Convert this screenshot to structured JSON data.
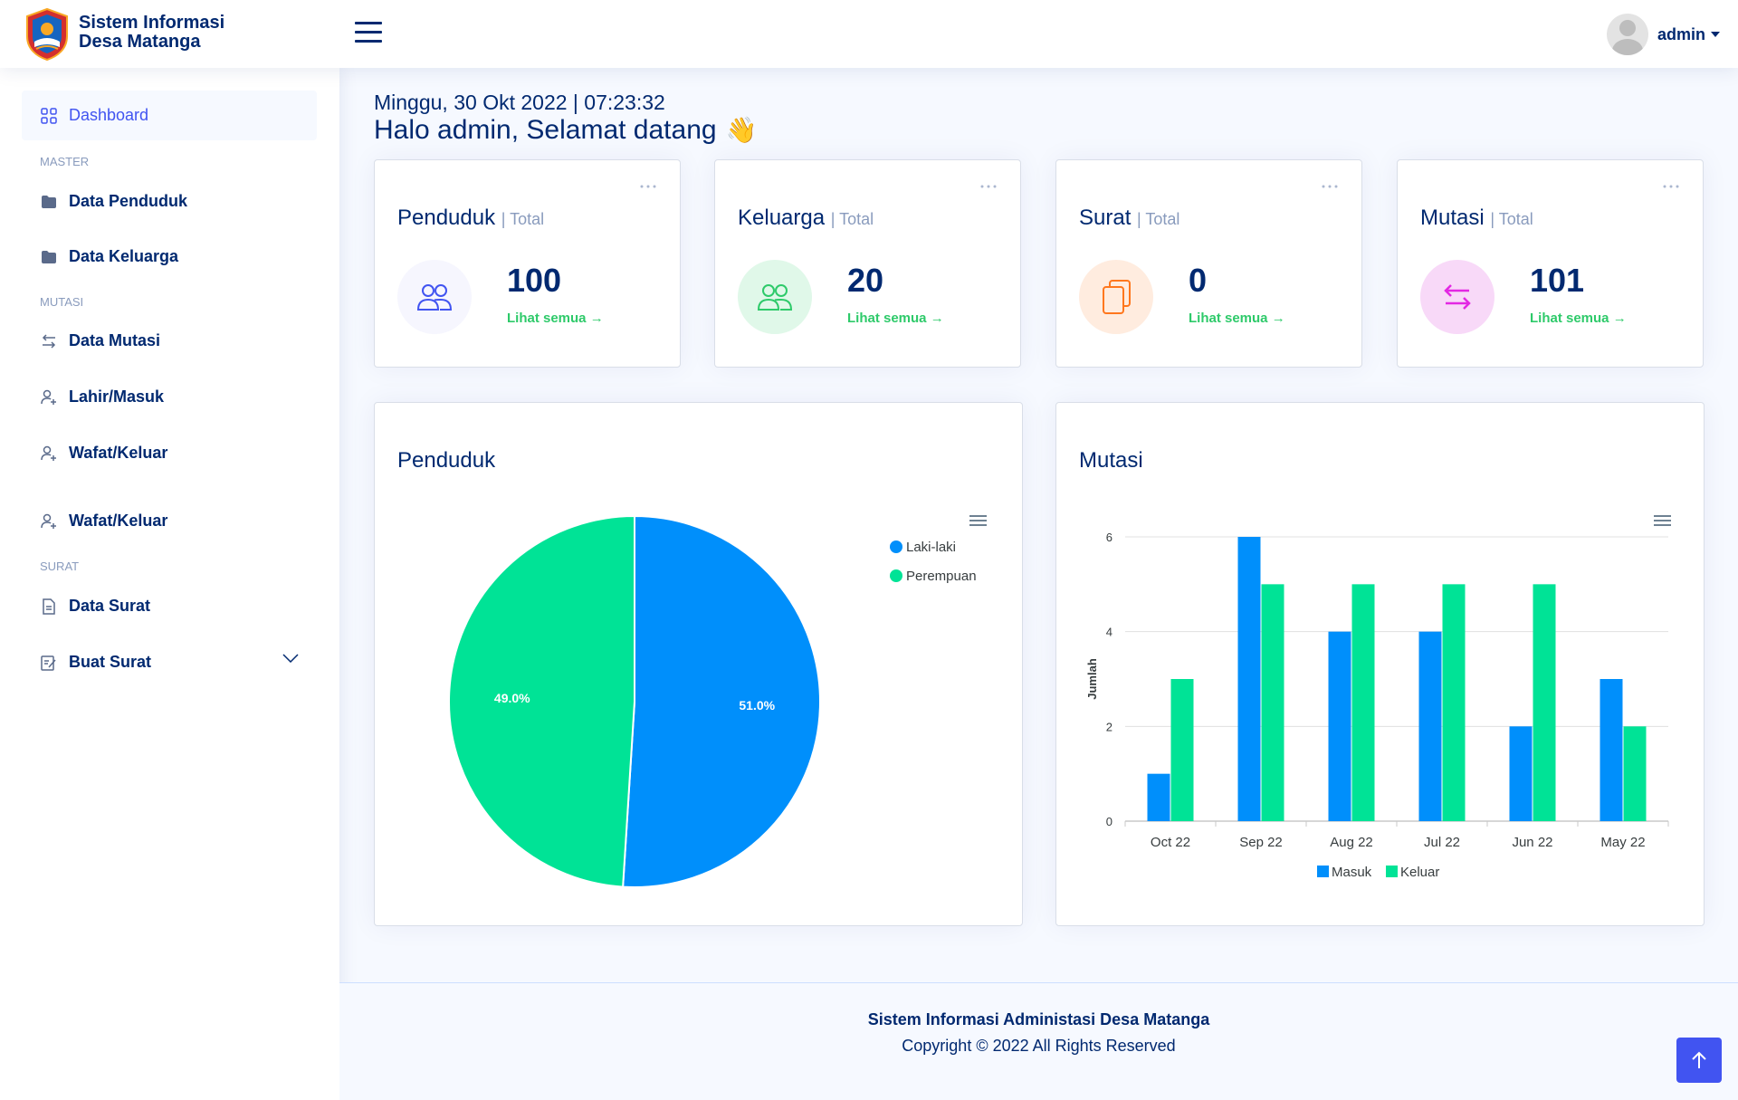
{
  "header": {
    "brand_line1": "Sistem Informasi",
    "brand_line2": "Desa Matanga",
    "user_name": "admin"
  },
  "sidebar": {
    "dashboard": "Dashboard",
    "heading_master": "MASTER",
    "data_penduduk": "Data Penduduk",
    "data_keluarga": "Data Keluarga",
    "heading_mutasi": "MUTASI",
    "data_mutasi": "Data Mutasi",
    "lahir_masuk": "Lahir/Masuk",
    "wafat_keluar_1": "Wafat/Keluar",
    "wafat_keluar_2": "Wafat/Keluar",
    "heading_surat": "SURAT",
    "data_surat": "Data Surat",
    "buat_surat": "Buat Surat"
  },
  "main": {
    "datetime": "Minggu, 30 Okt 2022 | 07:23:32",
    "greeting": "Halo admin, Selamat datang",
    "wave_emoji": "👋"
  },
  "stats": [
    {
      "title": "Penduduk",
      "sub": "| Total",
      "value": "100",
      "link": "Lihat semua",
      "color": "#4154f1",
      "bg": "#f6f6fe"
    },
    {
      "title": "Keluarga",
      "sub": "| Total",
      "value": "20",
      "link": "Lihat semua",
      "color": "#2eca6a",
      "bg": "#e0f8e9"
    },
    {
      "title": "Surat",
      "sub": "| Total",
      "value": "0",
      "link": "Lihat semua",
      "color": "#ff771d",
      "bg": "#ffecdf"
    },
    {
      "title": "Mutasi",
      "sub": "| Total",
      "value": "101",
      "link": "Lihat semua",
      "color": "#e328e3",
      "bg": "#f8d9f8"
    }
  ],
  "chart_titles": {
    "penduduk": "Penduduk",
    "mutasi": "Mutasi"
  },
  "chart_data": [
    {
      "type": "pie",
      "title": "Penduduk",
      "labels": [
        "Laki-laki",
        "Perempuan"
      ],
      "values": [
        51.0,
        49.0
      ],
      "value_labels": [
        "51.0%",
        "49.0%"
      ],
      "colors": [
        "#008ffb",
        "#00e396"
      ],
      "legend": "top-right"
    },
    {
      "type": "bar",
      "title": "Mutasi",
      "categories": [
        "Oct 22",
        "Sep 22",
        "Aug 22",
        "Jul 22",
        "Jun 22",
        "May 22"
      ],
      "series": [
        {
          "name": "Masuk",
          "values": [
            1,
            6,
            4,
            4,
            2,
            3
          ],
          "color": "#008ffb"
        },
        {
          "name": "Keluar",
          "values": [
            3,
            5,
            5,
            5,
            5,
            2
          ],
          "color": "#00e396"
        }
      ],
      "ylabel": "Jumlah",
      "ylim": [
        0,
        6
      ],
      "yticks": [
        "0",
        "2",
        "4",
        "6"
      ],
      "legend": "bottom"
    }
  ],
  "footer": {
    "line1": "Sistem Informasi Administasi Desa Matanga",
    "line2": "Copyright © 2022 All Rights Reserved"
  }
}
